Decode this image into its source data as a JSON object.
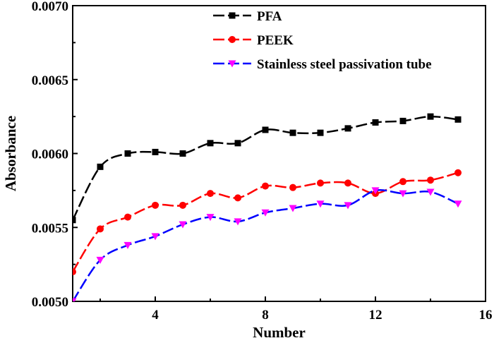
{
  "chart_data": {
    "type": "line",
    "title": "",
    "xlabel": "Number",
    "ylabel": "Absorbance",
    "xlim": [
      1,
      16
    ],
    "ylim": [
      0.005,
      0.007
    ],
    "x_ticks": [
      4,
      8,
      12,
      16
    ],
    "x_tick_labels": [
      "4",
      "8",
      "12",
      "16"
    ],
    "y_ticks": [
      0.005,
      0.0055,
      0.006,
      0.0065,
      0.007
    ],
    "y_tick_labels": [
      "0.0050",
      "0.0055",
      "0.0060",
      "0.0065",
      "0.0070"
    ],
    "grid": false,
    "legend_position": "top-right",
    "x": [
      1,
      2,
      3,
      4,
      5,
      6,
      7,
      8,
      9,
      10,
      11,
      12,
      13,
      14,
      15
    ],
    "series": [
      {
        "name": "PFA",
        "color": "#000000",
        "marker": "square",
        "values": [
          0.00555,
          0.00591,
          0.006,
          0.00601,
          0.006,
          0.00607,
          0.00607,
          0.00616,
          0.00614,
          0.00614,
          0.00617,
          0.00621,
          0.00622,
          0.00625,
          0.00623
        ]
      },
      {
        "name": "PEEK",
        "color": "#ff0000",
        "marker": "circle",
        "values": [
          0.0052,
          0.00549,
          0.00557,
          0.00565,
          0.00565,
          0.00573,
          0.0057,
          0.00578,
          0.00577,
          0.0058,
          0.0058,
          0.00573,
          0.00581,
          0.00582,
          0.00587
        ]
      },
      {
        "name": "Stainless steel passivation tube",
        "color": "#0000ff",
        "marker": "triangle-down",
        "marker_color": "#ff00ff",
        "values": [
          0.005,
          0.00528,
          0.00538,
          0.00544,
          0.00552,
          0.00557,
          0.00554,
          0.0056,
          0.00563,
          0.00566,
          0.00565,
          0.00575,
          0.00573,
          0.00574,
          0.00566
        ]
      }
    ]
  }
}
